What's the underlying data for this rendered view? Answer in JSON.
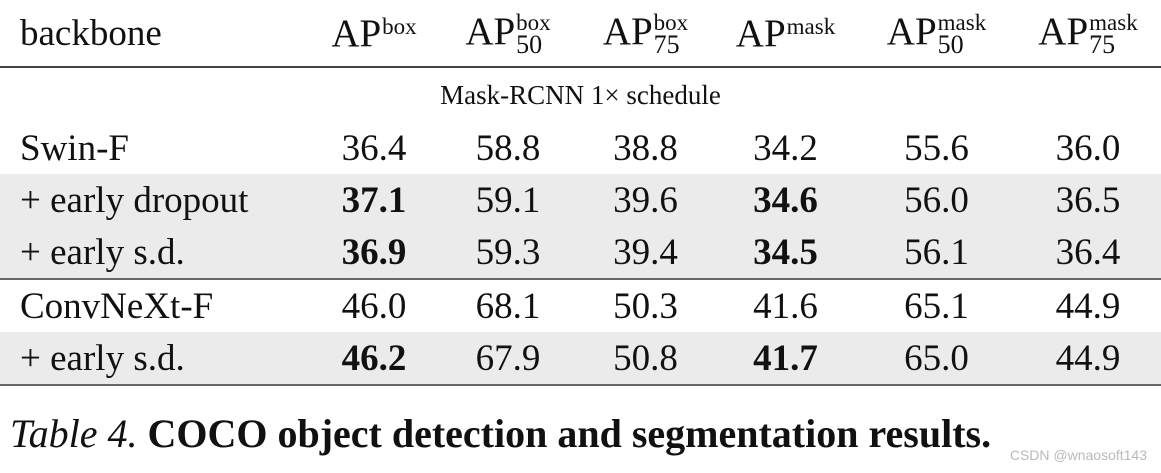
{
  "table": {
    "columns": [
      {
        "base": "backbone"
      },
      {
        "base": "AP",
        "sup": "box",
        "sub": ""
      },
      {
        "base": "AP",
        "sup": "box",
        "sub": "50"
      },
      {
        "base": "AP",
        "sup": "box",
        "sub": "75"
      },
      {
        "base": "AP",
        "sup": "mask",
        "sub": ""
      },
      {
        "base": "AP",
        "sup": "mask",
        "sub": "50"
      },
      {
        "base": "AP",
        "sup": "mask",
        "sub": "75"
      }
    ],
    "section_label": "Mask-RCNN 1× schedule",
    "rows": [
      {
        "name": "Swin-F",
        "cells": [
          "36.4",
          "58.8",
          "38.8",
          "34.2",
          "55.6",
          "36.0"
        ],
        "bold": [
          false,
          false,
          false,
          false,
          false,
          false
        ]
      },
      {
        "name": "+ early dropout",
        "cells": [
          "37.1",
          "59.1",
          "39.6",
          "34.6",
          "56.0",
          "36.5"
        ],
        "bold": [
          true,
          false,
          false,
          true,
          false,
          false
        ]
      },
      {
        "name": "+ early s.d.",
        "cells": [
          "36.9",
          "59.3",
          "39.4",
          "34.5",
          "56.1",
          "36.4"
        ],
        "bold": [
          true,
          false,
          false,
          true,
          false,
          false
        ]
      },
      {
        "name": "ConvNeXt-F",
        "cells": [
          "46.0",
          "68.1",
          "50.3",
          "41.6",
          "65.1",
          "44.9"
        ],
        "bold": [
          false,
          false,
          false,
          false,
          false,
          false
        ]
      },
      {
        "name": "+ early s.d.",
        "cells": [
          "46.2",
          "67.9",
          "50.8",
          "41.7",
          "65.0",
          "44.9"
        ],
        "bold": [
          true,
          false,
          false,
          true,
          false,
          false
        ]
      }
    ],
    "shaded_rows": [
      1,
      2,
      4
    ]
  },
  "caption": {
    "label": "Table 4.",
    "text": "COCO object detection and segmentation results."
  },
  "watermark": "CSDN @wnaosoft143"
}
